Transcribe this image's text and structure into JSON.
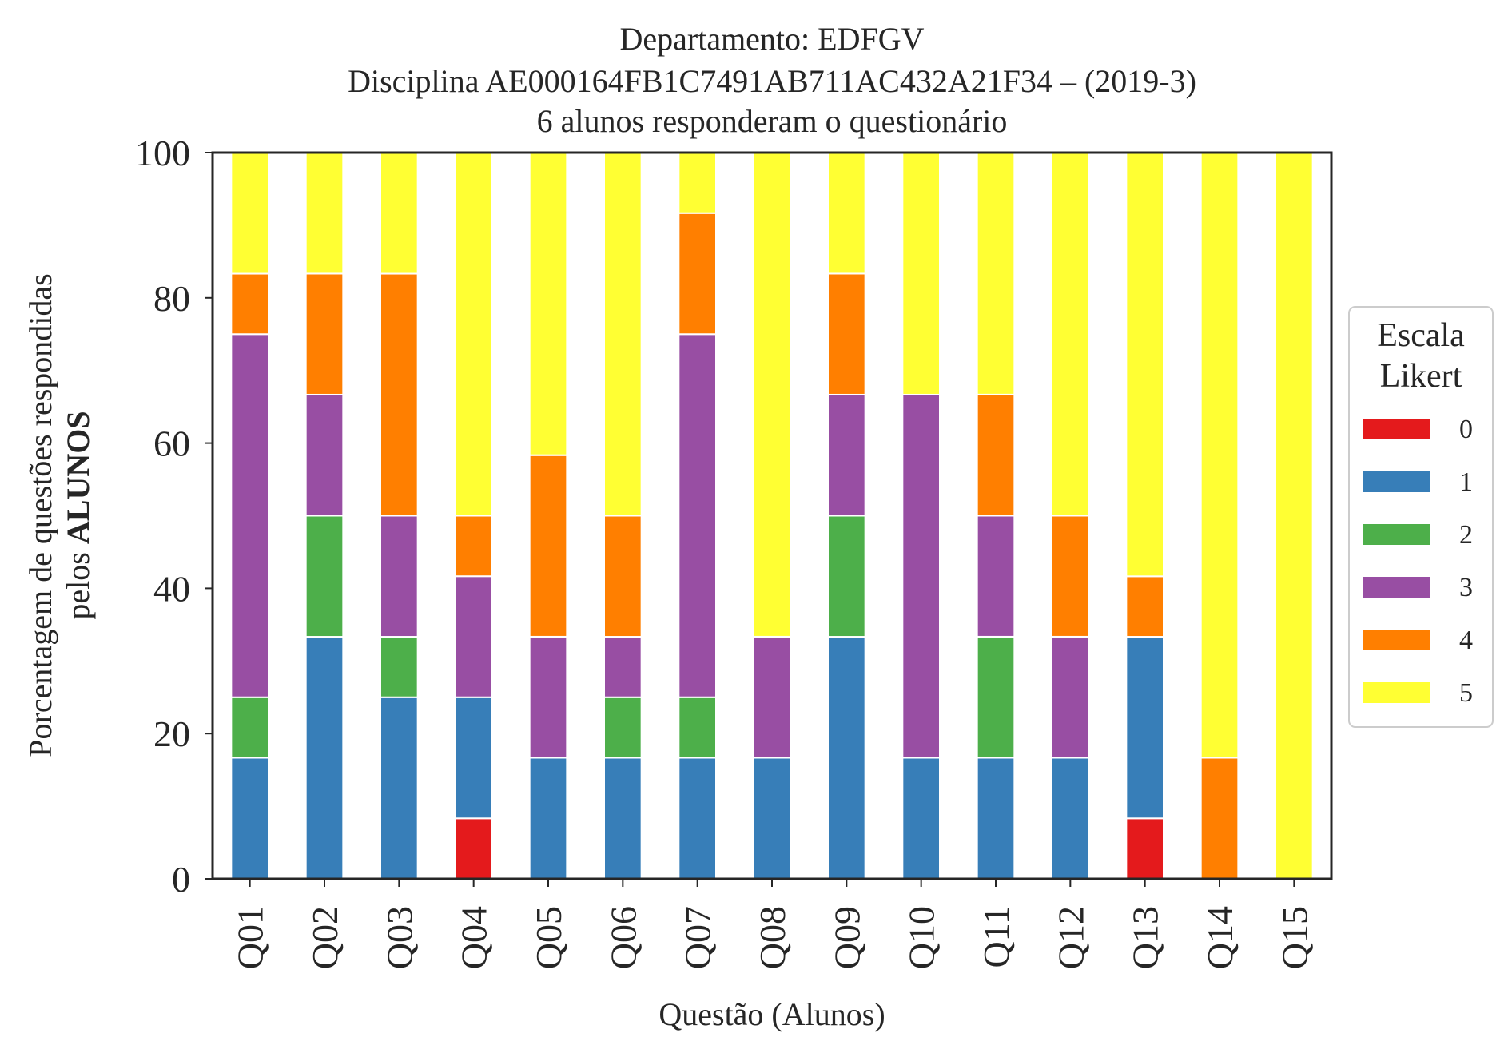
{
  "chart_data": {
    "type": "bar",
    "stacked": true,
    "title_lines": [
      "Departamento: EDFGV",
      "Disciplina AE000164FB1C7491AB711AC432A21F34 – (2019-3)",
      "6 alunos responderam o questionário"
    ],
    "xlabel": "Questão (Alunos)",
    "ylabel_line1": "Porcentagem de questões respondidas",
    "ylabel_line2_prefix": "pelos ",
    "ylabel_line2_bold": "ALUNOS",
    "ylim": [
      0,
      100
    ],
    "yticks": [
      "0",
      "20",
      "40",
      "60",
      "80",
      "100"
    ],
    "grid": false,
    "legend_position": "right",
    "legend_title_lines": [
      "Escala",
      "Likert"
    ],
    "categories": [
      "Q01",
      "Q02",
      "Q03",
      "Q04",
      "Q05",
      "Q06",
      "Q07",
      "Q08",
      "Q09",
      "Q10",
      "Q11",
      "Q12",
      "Q13",
      "Q14",
      "Q15"
    ],
    "series": [
      {
        "name": "0",
        "color": "#e41a1c",
        "values": [
          0,
          0,
          0,
          8.33,
          0,
          0,
          0,
          0,
          0,
          0,
          0,
          0,
          8.33,
          0,
          0
        ]
      },
      {
        "name": "1",
        "color": "#377eb8",
        "values": [
          16.67,
          33.33,
          25,
          16.67,
          16.67,
          16.67,
          16.67,
          16.67,
          33.33,
          16.67,
          16.67,
          16.67,
          25,
          0,
          0
        ]
      },
      {
        "name": "2",
        "color": "#4daf4a",
        "values": [
          8.33,
          16.67,
          8.33,
          0,
          0,
          8.33,
          8.33,
          0,
          16.67,
          0,
          16.67,
          0,
          0,
          0,
          0
        ]
      },
      {
        "name": "3",
        "color": "#984ea3",
        "values": [
          50,
          16.67,
          16.67,
          16.67,
          16.67,
          8.33,
          50,
          16.67,
          16.67,
          50,
          16.67,
          16.67,
          0,
          0,
          0
        ]
      },
      {
        "name": "4",
        "color": "#ff7f00",
        "values": [
          8.33,
          16.67,
          33.33,
          8.33,
          25,
          16.67,
          16.67,
          0,
          16.67,
          0,
          16.67,
          16.67,
          8.33,
          16.67,
          0
        ]
      },
      {
        "name": "5",
        "color": "#ffff33",
        "values": [
          16.67,
          16.67,
          16.67,
          50,
          41.67,
          50,
          8.33,
          66.67,
          16.67,
          33.33,
          33.33,
          50,
          58.33,
          83.33,
          100
        ]
      }
    ]
  }
}
